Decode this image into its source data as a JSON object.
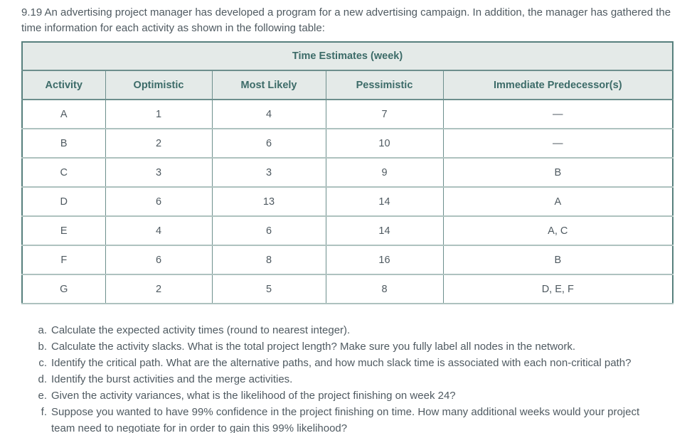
{
  "intro": "9.19 An advertising project manager has developed a program for a new advertising campaign. In addition, the manager has gathered the time information for each activity as shown in the following table:",
  "table": {
    "title": "Time Estimates (week)",
    "columns": [
      "Activity",
      "Optimistic",
      "Most Likely",
      "Pessimistic",
      "Immediate Predecessor(s)"
    ],
    "rows": [
      [
        "A",
        "1",
        "4",
        "7",
        "—"
      ],
      [
        "B",
        "2",
        "6",
        "10",
        "—"
      ],
      [
        "C",
        "3",
        "3",
        "9",
        "B"
      ],
      [
        "D",
        "6",
        "13",
        "14",
        "A"
      ],
      [
        "E",
        "4",
        "6",
        "14",
        "A, C"
      ],
      [
        "F",
        "6",
        "8",
        "16",
        "B"
      ],
      [
        "G",
        "2",
        "5",
        "8",
        "D, E, F"
      ]
    ]
  },
  "questions": [
    {
      "marker": "a.",
      "text": "Calculate the expected activity times (round to nearest integer)."
    },
    {
      "marker": "b.",
      "text": "Calculate the activity slacks. What is the total project length? Make sure you fully label all nodes in the network."
    },
    {
      "marker": "c.",
      "text": "Identify the critical path. What are the alternative paths, and how much slack time is associated with each non-critical path?"
    },
    {
      "marker": "d.",
      "text": "Identify the burst activities and the merge activities."
    },
    {
      "marker": "e.",
      "text": "Given the activity variances, what is the likelihood of the project finishing on week 24?"
    },
    {
      "marker": "f.",
      "text": "Suppose you wanted to have 99% confidence in the project finishing on time. How many additional weeks would your project team need to negotiate for in order to gain this 99% likelihood?"
    }
  ],
  "colors": {
    "body_text": "#4f5a61",
    "header_bg": "#e4eae8",
    "header_text": "#3c6b68",
    "border_dark": "#6d8f8d",
    "border_outer": "#57807d",
    "border_light": "#aec2bf",
    "page_bg": "#ffffff"
  }
}
